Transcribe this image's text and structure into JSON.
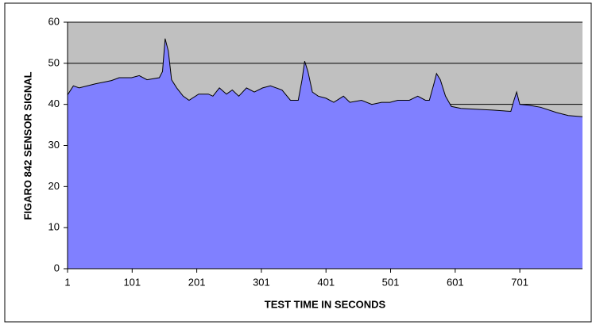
{
  "chart_data": {
    "type": "area",
    "xlabel": "TEST TIME IN SECONDS",
    "ylabel": "FIGARO 842 SENSOR SIGNAL",
    "x": [
      1,
      10,
      19,
      44,
      69,
      81,
      100,
      112,
      124,
      143,
      148,
      152,
      157,
      162,
      170,
      180,
      189,
      204,
      219,
      226,
      236,
      247,
      256,
      266,
      278,
      290,
      303,
      315,
      333,
      346,
      358,
      364,
      368,
      373,
      380,
      389,
      401,
      413,
      428,
      438,
      456,
      472,
      487,
      500,
      512,
      530,
      543,
      555,
      561,
      568,
      572,
      578,
      586,
      595,
      610,
      635,
      659,
      687,
      692,
      696,
      701,
      715,
      733,
      758,
      776,
      798
    ],
    "series": [
      {
        "name": "FIGARO 842",
        "color": "#8080ff",
        "values": [
          42.3,
          44.5,
          44,
          45,
          45.8,
          46.5,
          46.5,
          47,
          46,
          46.5,
          48,
          56,
          53,
          46,
          44,
          42,
          41,
          42.5,
          42.5,
          42,
          44,
          42.5,
          43.5,
          42,
          44,
          43,
          44,
          44.5,
          43.5,
          41,
          41,
          46,
          50.5,
          48,
          43,
          42,
          41.5,
          40.5,
          42,
          40.5,
          41,
          40,
          40.5,
          40.5,
          41,
          41,
          42,
          41,
          41,
          45,
          47.5,
          46,
          42,
          39.5,
          39,
          38.8,
          38.6,
          38.3,
          41,
          43,
          40,
          39.8,
          39.3,
          38,
          37.3,
          37
        ]
      }
    ],
    "xlim": [
      1,
      798
    ],
    "xticks": [
      1,
      101,
      201,
      301,
      401,
      501,
      601,
      701
    ],
    "ylim": [
      0,
      60
    ],
    "yticks": [
      0,
      10,
      20,
      30,
      40,
      50,
      60
    ],
    "grid": true,
    "plot_background": "#c0c0c0",
    "line_color": "#000000"
  }
}
